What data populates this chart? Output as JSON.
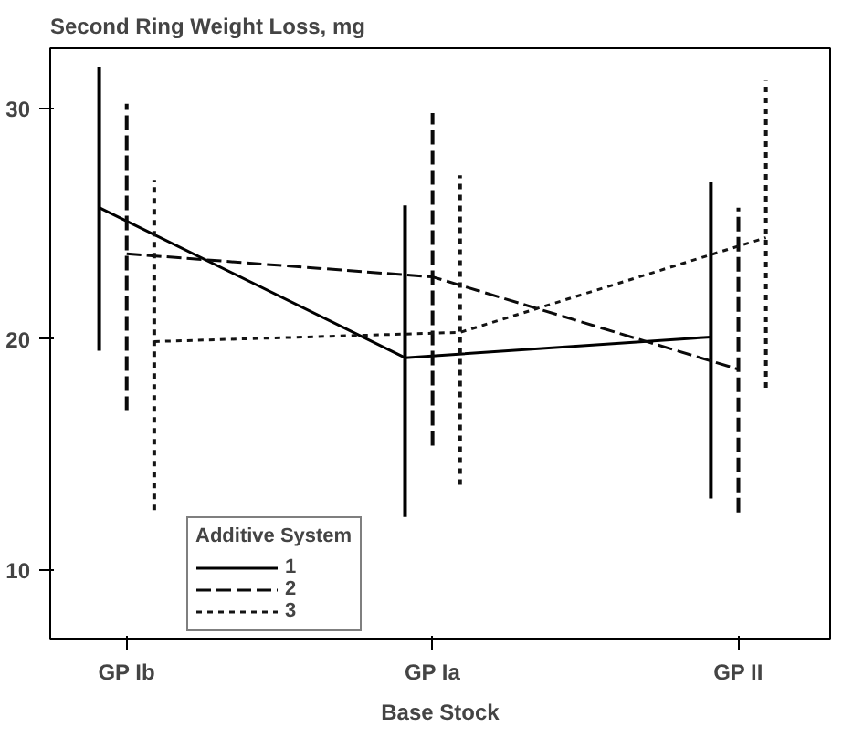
{
  "chart_data": {
    "type": "line",
    "title": "Second Ring Weight Loss, mg",
    "xlabel": "Base Stock",
    "legend_title": "Additive System",
    "categories": [
      "GP Ib",
      "GP Ia",
      "GP II"
    ],
    "series": [
      {
        "name": "1",
        "color": "#000000",
        "line_style": "solid",
        "values": [
          25.7,
          19.2,
          20.1
        ],
        "errors": [
          [
            19.5,
            31.8
          ],
          [
            12.3,
            25.8
          ],
          [
            13.1,
            26.8
          ]
        ]
      },
      {
        "name": "2",
        "color": "#0a0a0a",
        "line_style": "dashed",
        "values": [
          23.7,
          22.7,
          18.7
        ],
        "errors": [
          [
            16.9,
            30.2
          ],
          [
            15.4,
            29.8
          ],
          [
            12.5,
            25.7
          ]
        ]
      },
      {
        "name": "3",
        "color": "#141414",
        "line_style": "dotted",
        "values": [
          19.9,
          20.3,
          24.4
        ],
        "errors": [
          [
            12.6,
            26.9
          ],
          [
            13.7,
            27.1
          ],
          [
            17.9,
            31.2
          ]
        ]
      }
    ],
    "ylim": [
      7,
      32.6
    ],
    "yticks": [
      10,
      20,
      30
    ],
    "grid": false,
    "legend": "bottom",
    "marker": "none"
  }
}
